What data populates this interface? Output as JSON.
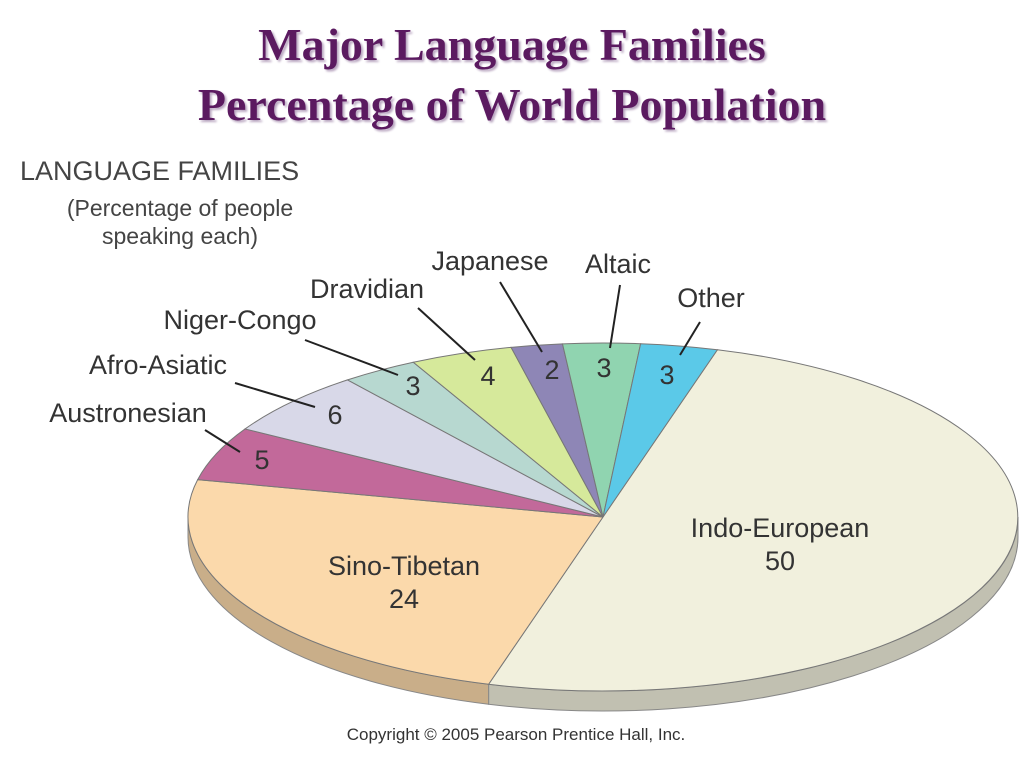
{
  "chart_data": {
    "type": "pie",
    "title": "Major Language Families",
    "subtitle": "Percentage of World Population",
    "legend_title": "LANGUAGE FAMILIES",
    "legend_subtitle": "(Percentage of people speaking each)",
    "categories": [
      "Indo-European",
      "Sino-Tibetan",
      "Austronesian",
      "Afro-Asiatic",
      "Niger-Congo",
      "Dravidian",
      "Japanese",
      "Altaic",
      "Other"
    ],
    "values": [
      50,
      24,
      5,
      6,
      3,
      4,
      2,
      3,
      3
    ],
    "colors": [
      "#f1f0dd",
      "#fbd9ab",
      "#c2699a",
      "#d8d8e8",
      "#b7d8d0",
      "#d6e99b",
      "#8e86b6",
      "#90d4b0",
      "#5bc9e8"
    ],
    "source": "Copyright © 2005 Pearson Prentice Hall, Inc."
  }
}
